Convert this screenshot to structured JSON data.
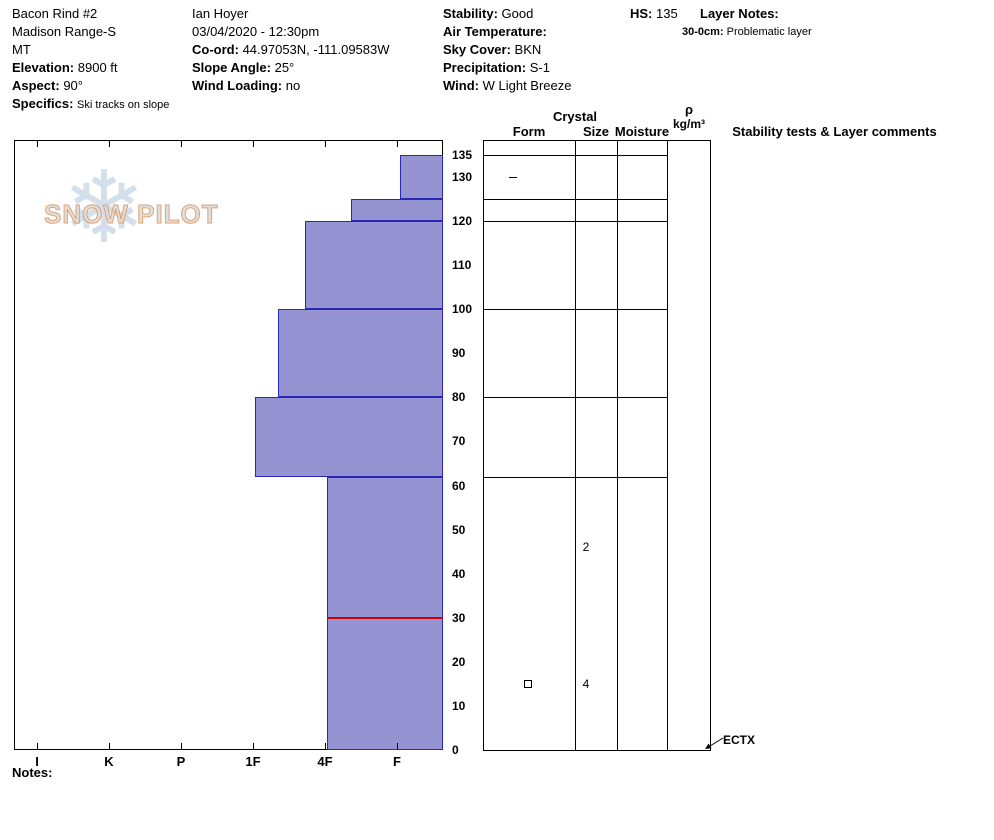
{
  "header": {
    "pit_name": "Bacon Rind #2",
    "range": "Madison Range-S",
    "state": "MT",
    "elevation_label": "Elevation:",
    "elevation_value": "8900 ft",
    "aspect_label": "Aspect:",
    "aspect_value": "90°",
    "specifics_label": "Specifics:",
    "specifics_value": "Ski tracks on slope",
    "observer": "Ian Hoyer",
    "datetime": "03/04/2020 - 12:30pm",
    "coord_label": "Co-ord:",
    "coord_value": "44.97053N, -111.09583W",
    "slope_angle_label": "Slope Angle:",
    "slope_angle_value": "25°",
    "wind_loading_label": "Wind Loading:",
    "wind_loading_value": "no",
    "stability_label": "Stability:",
    "stability_value": "Good",
    "air_temp_label": "Air Temperature:",
    "air_temp_value": "",
    "sky_label": "Sky Cover:",
    "sky_value": "BKN",
    "precip_label": "Precipitation:",
    "precip_value": "S-1",
    "wind_label": "Wind:",
    "wind_value": "W Light Breeze",
    "hs_label": "HS:",
    "hs_value": "135",
    "layer_notes_label": "Layer Notes:",
    "layer_note_depth": "30-0cm:",
    "layer_note_text": "Problematic layer"
  },
  "table": {
    "crystal_header": "Crystal",
    "columns": [
      "Form",
      "Size",
      "Moisture"
    ],
    "density_symbol": "ρ",
    "density_unit": "kg/m³",
    "stability_header": "Stability tests & Layer comments"
  },
  "watermark": {
    "snowflake": "❄",
    "text": "SNOW PILOT"
  },
  "footer": {
    "notes_label": "Notes:"
  },
  "chart_data": {
    "type": "bar",
    "description": "Snow pit hand-hardness profile: horizontal bars of hardness vs snow depth, with layer grid, grain info columns and stability test result",
    "depth_unit": "cm",
    "hs_total_cm": 135,
    "depth_ticks": [
      135,
      130,
      120,
      110,
      100,
      90,
      80,
      70,
      60,
      50,
      40,
      30,
      20,
      10,
      0
    ],
    "minor_depth_ticks": [
      130,
      120
    ],
    "hardness_scale": [
      "I",
      "K",
      "P",
      "1F",
      "4F",
      "F"
    ],
    "layers": [
      {
        "top_cm": 135,
        "bottom_cm": 125,
        "hardness": "F",
        "hardness_index": 5.04
      },
      {
        "top_cm": 125,
        "bottom_cm": 120,
        "hardness": "4F-",
        "hardness_index": 4.36
      },
      {
        "top_cm": 120,
        "bottom_cm": 100,
        "hardness": "4F+",
        "hardness_index": 3.72
      },
      {
        "top_cm": 100,
        "bottom_cm": 80,
        "hardness": "1F-",
        "hardness_index": 3.35
      },
      {
        "top_cm": 80,
        "bottom_cm": 62,
        "hardness": "1F",
        "hardness_index": 3.03
      },
      {
        "top_cm": 62,
        "bottom_cm": 0,
        "hardness": "4F",
        "hardness_index": 4.03
      }
    ],
    "flag_line_depth_cm": 30,
    "grain_annotations": [
      {
        "depth_cm": 46,
        "column": "size",
        "text": "2"
      },
      {
        "depth_cm": 15,
        "column": "size",
        "text": "4"
      },
      {
        "depth_cm": 15,
        "column": "form",
        "symbol": "square"
      }
    ],
    "test_result": "ECTX",
    "colors": {
      "bar_fill": "#9593d2",
      "bar_border": "#2929b8",
      "flag_line": "#cc0000"
    }
  }
}
